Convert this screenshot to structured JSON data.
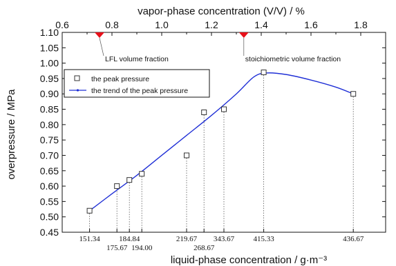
{
  "chart_data": {
    "type": "scatter",
    "title": "",
    "ylabel": "overpressure / MPa",
    "xlabel_bottom": "liquid-phase concentration / g·m⁻³",
    "xlabel_top": "vapor-phase concentration (V/V) / %",
    "ylim": [
      0.45,
      1.1
    ],
    "xlim_top": [
      0.6,
      1.9
    ],
    "y_ticks": [
      "0.45",
      "0.50",
      "0.55",
      "0.60",
      "0.65",
      "0.70",
      "0.75",
      "0.80",
      "0.85",
      "0.90",
      "0.95",
      "1.00",
      "1.05",
      "1.10"
    ],
    "x_top_ticks": [
      "0.6",
      "0.8",
      "1.0",
      "1.2",
      "1.4",
      "1.6",
      "1.8"
    ],
    "points": [
      {
        "x_vapor": 0.71,
        "x_label": "151.34",
        "y": 0.52
      },
      {
        "x_vapor": 0.82,
        "x_label": "175.67",
        "y": 0.6
      },
      {
        "x_vapor": 0.87,
        "x_label": "184.84",
        "y": 0.62
      },
      {
        "x_vapor": 0.92,
        "x_label": "194.00",
        "y": 0.64
      },
      {
        "x_vapor": 1.1,
        "x_label": "219.67",
        "y": 0.7
      },
      {
        "x_vapor": 1.17,
        "x_label": "268.67",
        "y": 0.84
      },
      {
        "x_vapor": 1.25,
        "x_label": "343.67",
        "y": 0.85
      },
      {
        "x_vapor": 1.41,
        "x_label": "415.33",
        "y": 0.97
      },
      {
        "x_vapor": 1.77,
        "x_label": "436.67",
        "y": 0.9
      }
    ],
    "trend": [
      [
        0.71,
        0.52
      ],
      [
        0.8,
        0.575
      ],
      [
        0.9,
        0.635
      ],
      [
        1.0,
        0.7
      ],
      [
        1.1,
        0.765
      ],
      [
        1.2,
        0.83
      ],
      [
        1.3,
        0.9
      ],
      [
        1.37,
        0.955
      ],
      [
        1.42,
        0.968
      ],
      [
        1.5,
        0.963
      ],
      [
        1.6,
        0.945
      ],
      [
        1.7,
        0.922
      ],
      [
        1.77,
        0.9
      ]
    ],
    "markers": [
      {
        "x_vapor": 0.75,
        "label": "LFL volume fraction",
        "color": "#e8101a"
      },
      {
        "x_vapor": 1.33,
        "label": "stoichiometric volume fraction",
        "color": "#e8101a"
      }
    ],
    "legend": {
      "placement": "upper-left",
      "entries": [
        "the peak pressure",
        "the trend of the peak pressure"
      ]
    },
    "trend_color": "#1f2fd6"
  }
}
